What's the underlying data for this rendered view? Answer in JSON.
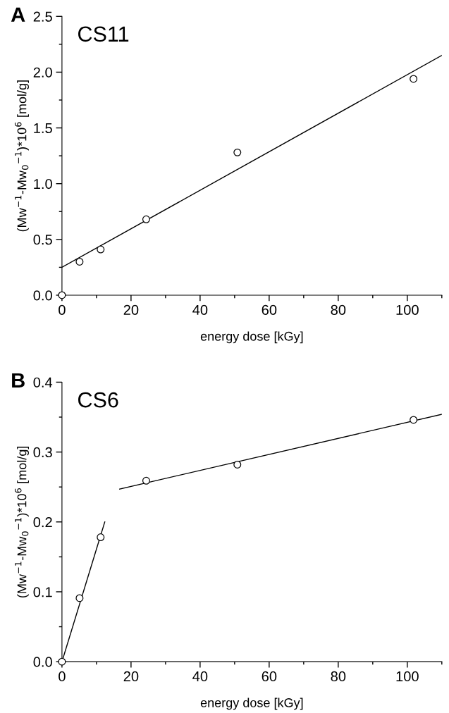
{
  "chart_data": [
    {
      "type": "scatter",
      "title": "A",
      "xlabel": "energy dose [kGy]",
      "ylabel": "(Mw$^{−1}$-Mw$_{0}$$^{−1}$)*10$^{6}$ [mol/g]",
      "annotations": [
        "CS11"
      ],
      "xlim": [
        0,
        110
      ],
      "ylim": [
        0,
        2.5
      ],
      "xticks": [
        0,
        {
          "value": 10,
          "label": null
        },
        20,
        {
          "value": 30,
          "label": null
        },
        40,
        {
          "value": 50,
          "label": null
        },
        60,
        {
          "value": 70,
          "label": null
        },
        80,
        {
          "value": 90,
          "label": null
        },
        100,
        {
          "value": 110,
          "label": null
        }
      ],
      "yticks": [
        {
          "value": 0,
          "label": "0.0"
        },
        {
          "value": 0.25,
          "label": null
        },
        0.5,
        {
          "value": 0.75,
          "label": null
        },
        {
          "value": 1,
          "label": "1.0"
        },
        {
          "value": 1.25,
          "label": null
        },
        1.5,
        {
          "value": 1.75,
          "label": null
        },
        {
          "value": 2,
          "label": "2.0"
        },
        {
          "value": 2.25,
          "label": null
        },
        2.5
      ],
      "marker": "circle",
      "grid": false,
      "legend": false,
      "series": [
        {
          "color": "#000000",
          "x": [
            0,
            5.1,
            11.2,
            24.4,
            50.8,
            101.8
          ],
          "values": [
            0,
            0.3,
            0.41,
            0.68,
            1.28,
            1.94
          ]
        },
        {
          "type": "line",
          "marker": "none",
          "color": "#000000",
          "x": [
            0,
            110
          ],
          "values": [
            0.25,
            2.15
          ]
        }
      ]
    },
    {
      "type": "scatter",
      "title": "B",
      "xlabel": "energy dose [kGy]",
      "ylabel": "(Mw$^{−1}$-Mw$_{0}$$^{−1}$)*10$^{6}$ [mol/g]",
      "annotations": [
        "CS6"
      ],
      "xlim": [
        0,
        110
      ],
      "ylim": [
        0,
        0.4
      ],
      "xticks": [
        0,
        {
          "value": 10,
          "label": null
        },
        20,
        {
          "value": 30,
          "label": null
        },
        40,
        {
          "value": 50,
          "label": null
        },
        60,
        {
          "value": 70,
          "label": null
        },
        80,
        {
          "value": 90,
          "label": null
        },
        100,
        {
          "value": 110,
          "label": null
        }
      ],
      "yticks": [
        {
          "value": 0,
          "label": "0.0"
        },
        {
          "value": 0.05,
          "label": null
        },
        0.1,
        {
          "value": 0.15,
          "label": null
        },
        0.2,
        {
          "value": 0.25,
          "label": null
        },
        0.3,
        {
          "value": 0.35,
          "label": null
        },
        0.4
      ],
      "marker": "circle",
      "grid": false,
      "legend": false,
      "series": [
        {
          "color": "#000000",
          "x": [
            0,
            5.1,
            11.2,
            24.4,
            50.8,
            101.8
          ],
          "values": [
            0,
            0.091,
            0.178,
            0.259,
            0.282,
            0.346
          ]
        },
        {
          "type": "line",
          "marker": "none",
          "color": "#000000",
          "x": [
            0,
            12.4
          ],
          "values": [
            0,
            0.2
          ]
        },
        {
          "type": "line",
          "marker": "none",
          "color": "#000000",
          "x": [
            16.7,
            110
          ],
          "values": [
            0.247,
            0.354
          ]
        }
      ]
    }
  ]
}
